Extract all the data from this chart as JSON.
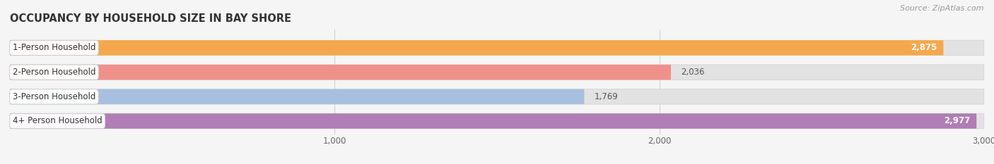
{
  "title": "OCCUPANCY BY HOUSEHOLD SIZE IN BAY SHORE",
  "source": "Source: ZipAtlas.com",
  "categories": [
    "1-Person Household",
    "2-Person Household",
    "3-Person Household",
    "4+ Person Household"
  ],
  "values": [
    2875,
    2036,
    1769,
    2977
  ],
  "colors": [
    "#F5A84B",
    "#F0908A",
    "#A8C0E0",
    "#B07DB5"
  ],
  "xlim_max": 3000,
  "xticks": [
    1000,
    2000,
    3000
  ],
  "xtick_labels": [
    "1,000",
    "2,000",
    "3,000"
  ],
  "background_color": "#f5f5f5",
  "bar_bg_color": "#e2e2e2",
  "value_inside_color": "white",
  "value_outside_color": "#555555"
}
